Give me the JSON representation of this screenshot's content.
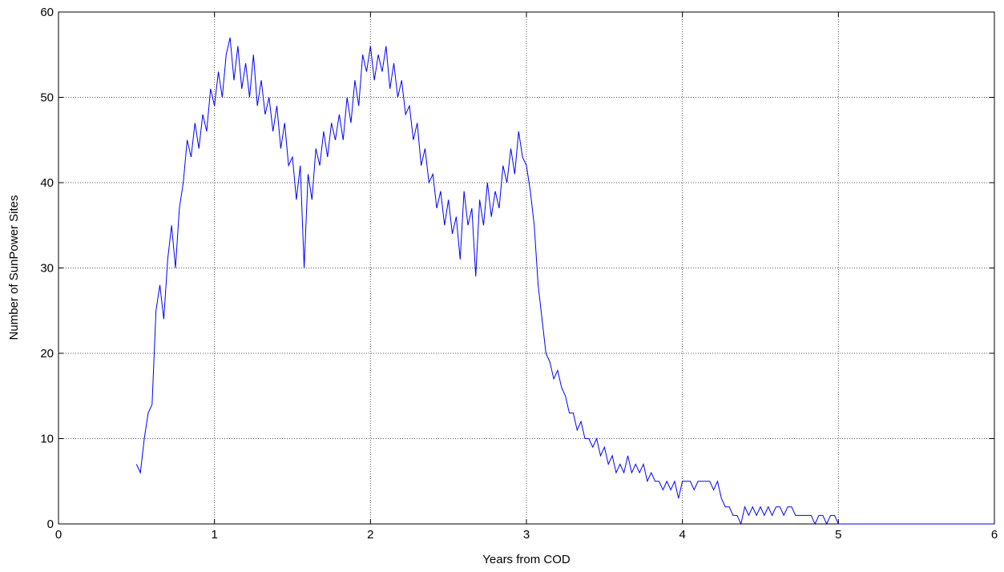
{
  "chart_data": {
    "type": "line",
    "xlabel": "Years from COD",
    "ylabel": "Number of SunPower Sites",
    "color": "#0000ff",
    "grid": true,
    "xlim": [
      0,
      6
    ],
    "xticks": [
      0,
      1,
      2,
      3,
      4,
      5,
      6
    ],
    "ylim": [
      0,
      60
    ],
    "yticks": [
      0,
      10,
      20,
      30,
      40,
      50,
      60
    ],
    "x": [
      0.5,
      0.525,
      0.55,
      0.575,
      0.6,
      0.625,
      0.65,
      0.675,
      0.7,
      0.725,
      0.75,
      0.775,
      0.8,
      0.825,
      0.85,
      0.875,
      0.9,
      0.925,
      0.95,
      0.975,
      1.0,
      1.025,
      1.05,
      1.075,
      1.1,
      1.125,
      1.15,
      1.175,
      1.2,
      1.225,
      1.25,
      1.275,
      1.3,
      1.325,
      1.35,
      1.375,
      1.4,
      1.425,
      1.45,
      1.475,
      1.5,
      1.525,
      1.55,
      1.575,
      1.6,
      1.625,
      1.65,
      1.675,
      1.7,
      1.725,
      1.75,
      1.775,
      1.8,
      1.825,
      1.85,
      1.875,
      1.9,
      1.925,
      1.95,
      1.975,
      2.0,
      2.025,
      2.05,
      2.075,
      2.1,
      2.125,
      2.15,
      2.175,
      2.2,
      2.225,
      2.25,
      2.275,
      2.3,
      2.325,
      2.35,
      2.375,
      2.4,
      2.425,
      2.45,
      2.475,
      2.5,
      2.525,
      2.55,
      2.575,
      2.6,
      2.625,
      2.65,
      2.675,
      2.7,
      2.725,
      2.75,
      2.775,
      2.8,
      2.825,
      2.85,
      2.875,
      2.9,
      2.925,
      2.95,
      2.975,
      3.0,
      3.025,
      3.05,
      3.075,
      3.1,
      3.125,
      3.15,
      3.175,
      3.2,
      3.225,
      3.25,
      3.275,
      3.3,
      3.325,
      3.35,
      3.375,
      3.4,
      3.425,
      3.45,
      3.475,
      3.5,
      3.525,
      3.55,
      3.575,
      3.6,
      3.625,
      3.65,
      3.675,
      3.7,
      3.725,
      3.75,
      3.775,
      3.8,
      3.825,
      3.85,
      3.875,
      3.9,
      3.925,
      3.95,
      3.975,
      4.0,
      4.025,
      4.05,
      4.075,
      4.1,
      4.125,
      4.15,
      4.175,
      4.2,
      4.225,
      4.25,
      4.275,
      4.3,
      4.325,
      4.35,
      4.375,
      4.4,
      4.425,
      4.45,
      4.475,
      4.5,
      4.525,
      4.55,
      4.575,
      4.6,
      4.625,
      4.65,
      4.675,
      4.7,
      4.725,
      4.75,
      4.775,
      4.8,
      4.825,
      4.85,
      4.875,
      4.9,
      4.925,
      4.95,
      4.975,
      5.0,
      6.0
    ],
    "values": [
      7,
      6,
      10,
      13,
      14,
      25,
      28,
      24,
      31,
      35,
      30,
      37,
      40,
      45,
      43,
      47,
      44,
      48,
      46,
      51,
      49,
      53,
      50,
      55,
      57,
      52,
      56,
      51,
      54,
      50,
      55,
      49,
      52,
      48,
      50,
      46,
      49,
      44,
      47,
      42,
      43,
      38,
      42,
      30,
      41,
      38,
      44,
      42,
      46,
      43,
      47,
      45,
      48,
      45,
      50,
      47,
      52,
      49,
      55,
      53,
      56,
      52,
      55,
      53,
      56,
      51,
      54,
      50,
      52,
      48,
      49,
      45,
      47,
      42,
      44,
      40,
      41,
      37,
      39,
      35,
      38,
      34,
      36,
      31,
      39,
      35,
      37,
      29,
      38,
      35,
      40,
      36,
      39,
      37,
      42,
      40,
      44,
      41,
      46,
      43,
      42,
      39,
      35,
      28,
      24,
      20,
      19,
      17,
      18,
      16,
      15,
      13,
      13,
      11,
      12,
      10,
      10,
      9,
      10,
      8,
      9,
      7,
      8,
      6,
      7,
      6,
      8,
      6,
      7,
      6,
      7,
      5,
      6,
      5,
      5,
      4,
      5,
      4,
      5,
      3,
      5,
      5,
      5,
      4,
      5,
      5,
      5,
      5,
      4,
      5,
      3,
      2,
      2,
      1,
      1,
      0,
      2,
      1,
      2,
      1,
      2,
      1,
      2,
      1,
      2,
      2,
      1,
      2,
      2,
      1,
      1,
      1,
      1,
      1,
      0,
      1,
      1,
      0,
      1,
      1,
      0,
      0
    ]
  }
}
